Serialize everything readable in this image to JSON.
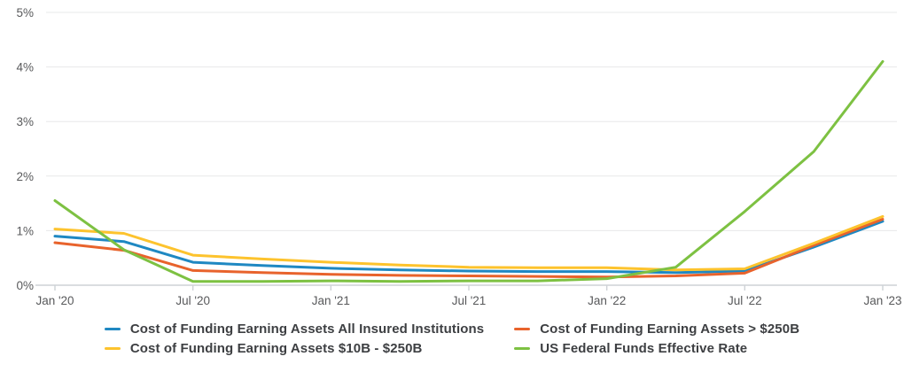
{
  "chart": {
    "y_axis": {
      "labels": [
        "0%",
        "1%",
        "2%",
        "3%",
        "4%",
        "5%"
      ]
    },
    "x_axis": {
      "tick_labels": [
        "Jan '20",
        "Jul '20",
        "Jan '21",
        "Jul '21",
        "Jan '22",
        "Jul '22",
        "Jan '23"
      ]
    },
    "colors": {
      "gridline": "#e7e8e9",
      "axis_line": "#ced2d6",
      "tick": "#ced2d6",
      "axis_label": "#58595b",
      "legend_text": "#3d3f42",
      "background": "#ffffff"
    }
  },
  "chart_data": {
    "type": "line",
    "title": "",
    "xlabel": "",
    "ylabel": "",
    "ylim": [
      0,
      5
    ],
    "y_unit": "%",
    "grid": true,
    "legend_position": "bottom",
    "x": [
      "Jan '20",
      "Apr '20",
      "Jul '20",
      "Oct '20",
      "Jan '21",
      "Apr '21",
      "Jul '21",
      "Oct '21",
      "Jan '22",
      "Apr '22",
      "Jul '22",
      "Oct '22",
      "Jan '23"
    ],
    "x_tick_indices": [
      0,
      2,
      4,
      6,
      8,
      10,
      12
    ],
    "series": [
      {
        "name": "Cost of Funding Earning Assets All Insured Institutions",
        "color": "#1f88c2",
        "values": [
          0.9,
          0.8,
          0.42,
          0.36,
          0.31,
          0.28,
          0.26,
          0.25,
          0.25,
          0.23,
          0.26,
          0.7,
          1.17
        ]
      },
      {
        "name": "Cost of Funding Earning Assets > $250B",
        "color": "#e8632c",
        "values": [
          0.78,
          0.64,
          0.27,
          0.23,
          0.2,
          0.18,
          0.17,
          0.16,
          0.15,
          0.17,
          0.22,
          0.73,
          1.21
        ]
      },
      {
        "name": "Cost of Funding Earning Assets $10B - $250B",
        "color": "#fdc32d",
        "values": [
          1.03,
          0.95,
          0.55,
          0.48,
          0.42,
          0.37,
          0.33,
          0.32,
          0.32,
          0.28,
          0.3,
          0.77,
          1.26
        ]
      },
      {
        "name": "US Federal Funds Effective Rate",
        "color": "#7dc142",
        "values": [
          1.55,
          0.65,
          0.07,
          0.07,
          0.08,
          0.07,
          0.08,
          0.08,
          0.12,
          0.33,
          1.35,
          2.45,
          4.1
        ]
      }
    ],
    "legend_display_order": [
      0,
      1,
      2,
      3
    ]
  }
}
